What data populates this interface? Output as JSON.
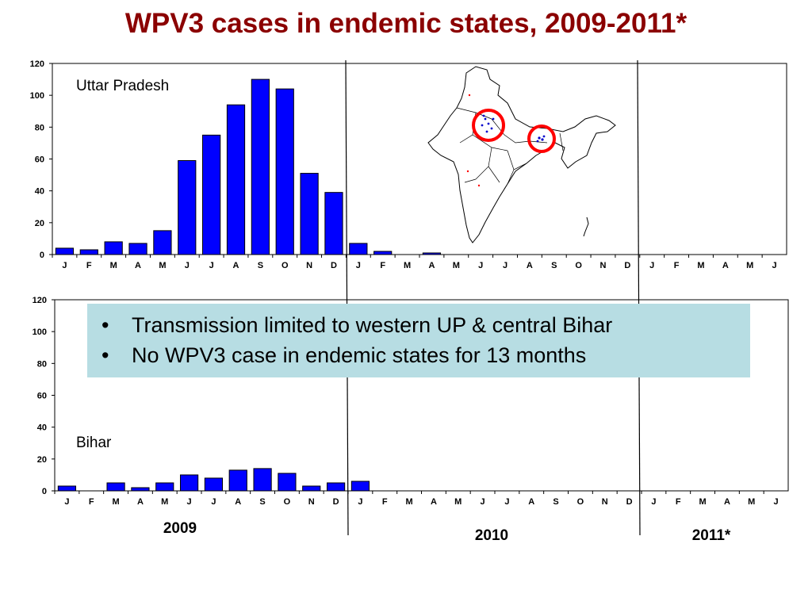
{
  "title": "WPV3 cases in endemic states, 2009-2011*",
  "callout": {
    "bullets": [
      "Transmission limited to western UP & central Bihar",
      "No WPV3 case in endemic states for 13 months"
    ]
  },
  "years": [
    "2009",
    "2010",
    "2011*"
  ],
  "colors": {
    "bar": "#0000ff",
    "title": "#8b0000",
    "callout_bg": "#b7dde3",
    "map_circle": "#ff0000"
  },
  "map": {
    "description_icon": "india-map-icon",
    "highlight_regions": [
      "western Uttar Pradesh",
      "central Bihar"
    ]
  },
  "chart_data": [
    {
      "type": "bar",
      "series_label": "Uttar Pradesh",
      "categories": [
        "J",
        "F",
        "M",
        "A",
        "M",
        "J",
        "J",
        "A",
        "S",
        "O",
        "N",
        "D",
        "J",
        "F",
        "M",
        "A",
        "M",
        "J",
        "J",
        "A",
        "S",
        "O",
        "N",
        "D",
        "J",
        "F",
        "M",
        "A",
        "M",
        "J"
      ],
      "values": [
        4,
        3,
        8,
        7,
        15,
        59,
        75,
        94,
        110,
        104,
        51,
        39,
        7,
        2,
        0,
        1,
        0,
        0,
        0,
        0,
        0,
        0,
        0,
        0,
        0,
        0,
        0,
        0,
        0,
        0
      ],
      "yticks": [
        "0",
        "20",
        "40",
        "60",
        "80",
        "100",
        "120"
      ],
      "ylim": [
        0,
        120
      ],
      "grid": false
    },
    {
      "type": "bar",
      "series_label": "Bihar",
      "categories": [
        "J",
        "F",
        "M",
        "A",
        "M",
        "J",
        "J",
        "A",
        "S",
        "O",
        "N",
        "D",
        "J",
        "F",
        "M",
        "A",
        "M",
        "J",
        "J",
        "A",
        "S",
        "O",
        "N",
        "D",
        "J",
        "F",
        "M",
        "A",
        "M",
        "J"
      ],
      "values": [
        3,
        0,
        5,
        2,
        5,
        10,
        8,
        13,
        14,
        11,
        3,
        5,
        6,
        0,
        0,
        0,
        0,
        0,
        0,
        0,
        0,
        0,
        0,
        0,
        0,
        0,
        0,
        0,
        0,
        0
      ],
      "yticks": [
        "0",
        "20",
        "40",
        "60",
        "80",
        "100",
        "120"
      ],
      "ylim": [
        0,
        120
      ],
      "grid": false
    }
  ]
}
